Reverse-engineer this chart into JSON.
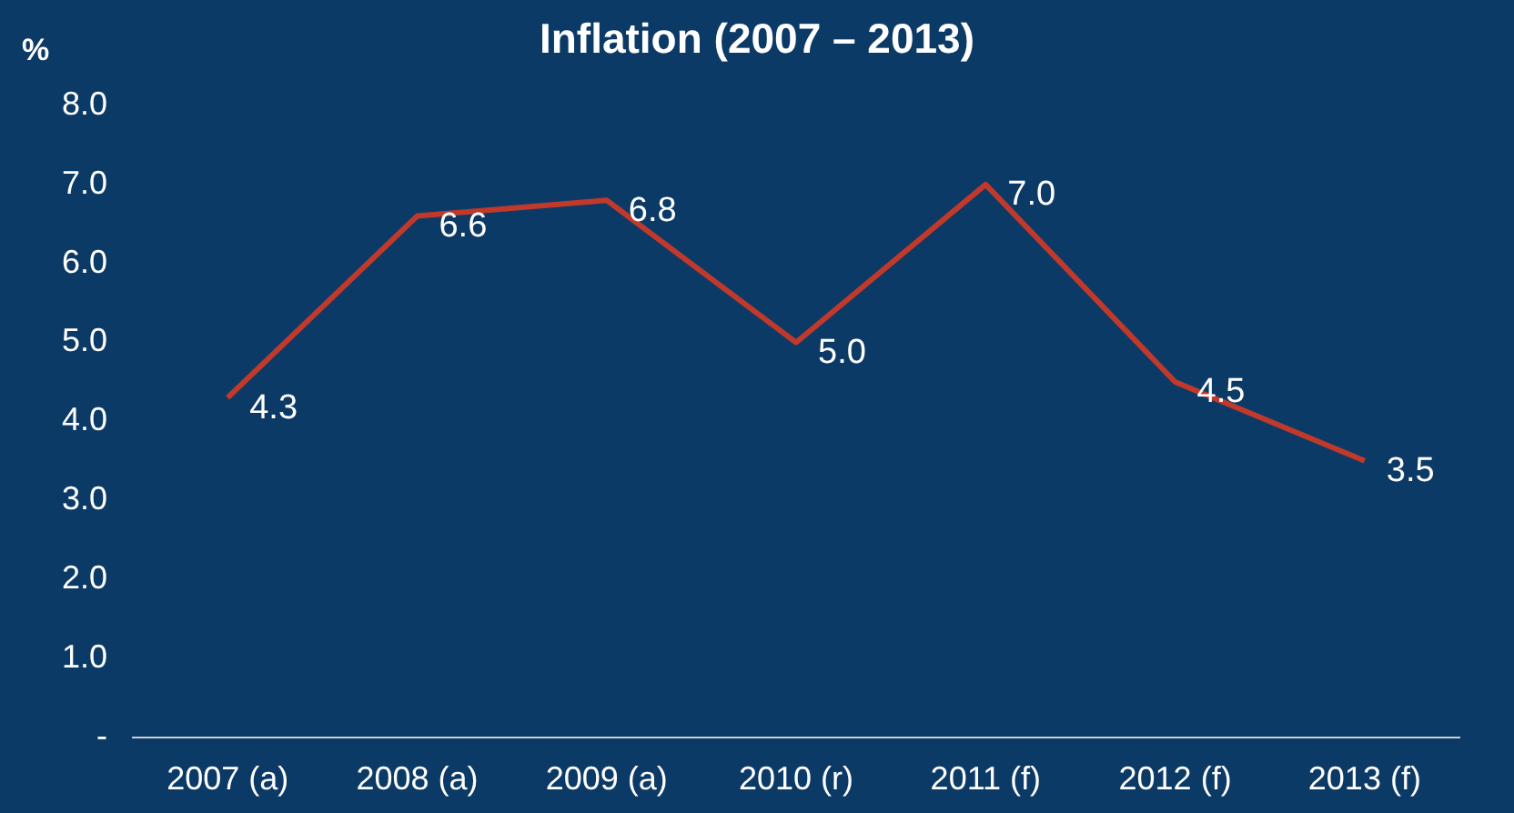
{
  "chart_data": {
    "type": "line",
    "title": "Inflation (2007 – 2013)",
    "ylabel": "%",
    "categories": [
      "2007 (a)",
      "2008 (a)",
      "2009 (a)",
      "2010 (r)",
      "2011 (f)",
      "2012 (f)",
      "2013 (f)"
    ],
    "series": [
      {
        "color": "#c0392b",
        "values": [
          4.3,
          6.6,
          6.8,
          5.0,
          7.0,
          4.5,
          3.5
        ],
        "value_labels": [
          "4.3",
          "6.6",
          "6.8",
          "5.0",
          "7.0",
          "4.5",
          "3.5"
        ]
      }
    ],
    "ylim": [
      0,
      8
    ],
    "yticks": [
      {
        "value": 0,
        "label": "-"
      },
      {
        "value": 1,
        "label": "1.0"
      },
      {
        "value": 2,
        "label": "2.0"
      },
      {
        "value": 3,
        "label": "3.0"
      },
      {
        "value": 4,
        "label": "4.0"
      },
      {
        "value": 5,
        "label": "5.0"
      },
      {
        "value": 6,
        "label": "6.0"
      },
      {
        "value": 7,
        "label": "7.0"
      },
      {
        "value": 8,
        "label": "8.0"
      }
    ],
    "grid": false,
    "legend": false,
    "marker": "none",
    "line_style": "solid"
  }
}
